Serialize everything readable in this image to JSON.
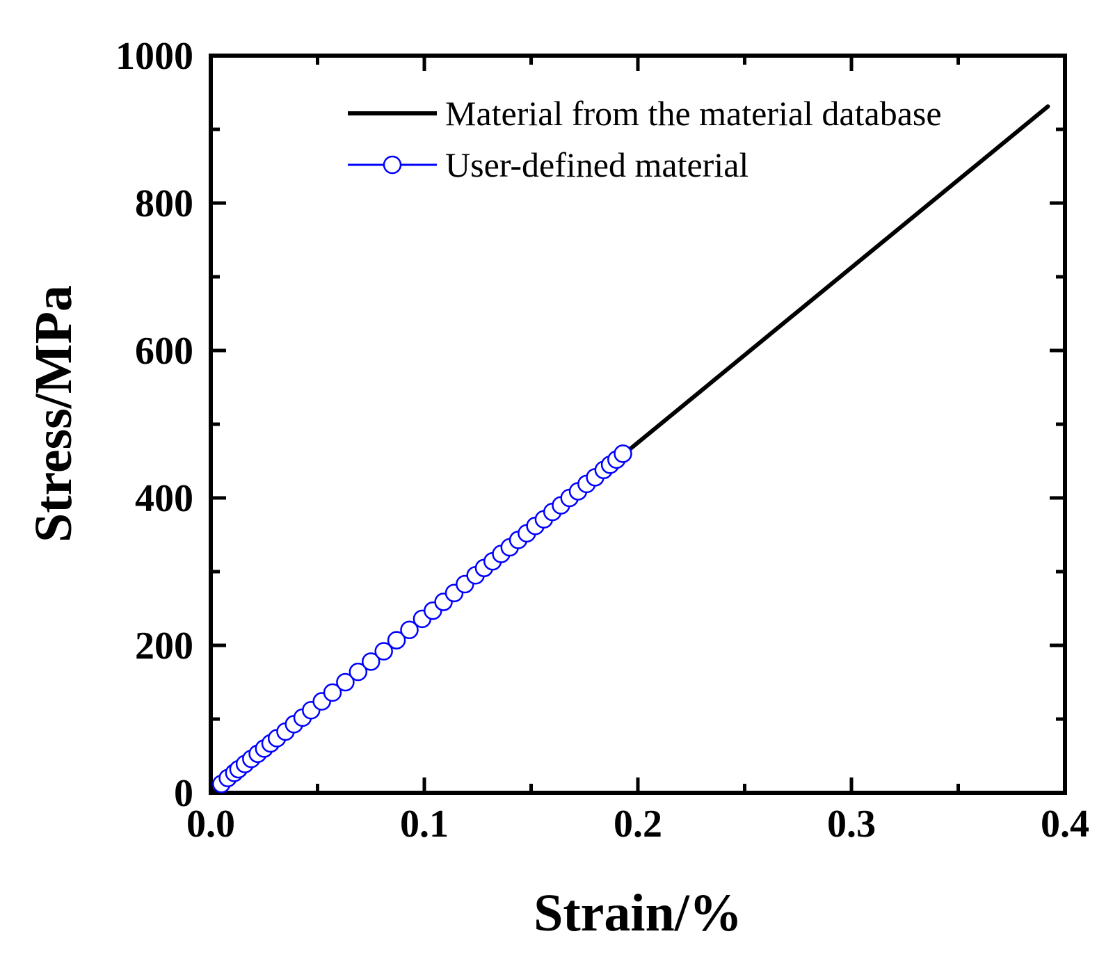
{
  "chart_data": {
    "type": "line",
    "title": "",
    "xlabel": "Strain/%",
    "ylabel": "Stress/MPa",
    "xlim": [
      0.0,
      0.4
    ],
    "ylim": [
      0,
      1000
    ],
    "x_ticks": [
      "0.0",
      "0.1",
      "0.2",
      "0.3",
      "0.4"
    ],
    "y_ticks": [
      "0",
      "200",
      "400",
      "600",
      "800",
      "1000"
    ],
    "legend_position": "top-right",
    "series": [
      {
        "name": "Material from the material database",
        "style": "line",
        "color": "#000000",
        "x": [
          0.0,
          0.392
        ],
        "y": [
          0,
          931
        ]
      },
      {
        "name": "User-defined material",
        "style": "line+circle-markers",
        "color": "#0000ff",
        "x": [
          0.005,
          0.008,
          0.011,
          0.013,
          0.016,
          0.019,
          0.022,
          0.025,
          0.028,
          0.031,
          0.035,
          0.039,
          0.043,
          0.047,
          0.052,
          0.057,
          0.063,
          0.069,
          0.075,
          0.081,
          0.087,
          0.093,
          0.099,
          0.104,
          0.109,
          0.114,
          0.119,
          0.124,
          0.128,
          0.132,
          0.136,
          0.14,
          0.144,
          0.148,
          0.152,
          0.156,
          0.16,
          0.164,
          0.168,
          0.172,
          0.176,
          0.18,
          0.184,
          0.187,
          0.19,
          0.193
        ],
        "y": [
          12,
          20,
          27,
          32,
          39,
          46,
          53,
          60,
          67,
          74,
          83,
          93,
          102,
          112,
          124,
          136,
          150,
          164,
          178,
          192,
          207,
          221,
          236,
          247,
          259,
          271,
          283,
          295,
          305,
          314,
          324,
          333,
          343,
          352,
          362,
          371,
          381,
          390,
          400,
          409,
          419,
          428,
          438,
          445,
          452,
          460
        ]
      }
    ]
  }
}
